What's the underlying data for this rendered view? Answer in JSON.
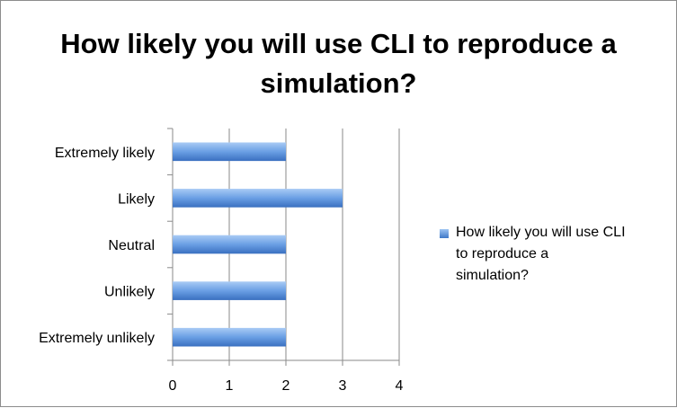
{
  "chart_data": {
    "type": "bar",
    "orientation": "horizontal",
    "title": "How likely you will use CLI to reproduce a simulation?",
    "categories": [
      "Extremely likely",
      "Likely",
      "Neutral",
      "Unlikely",
      "Extremely unlikely"
    ],
    "series": [
      {
        "name": "How likely you will use CLI to reproduce a simulation?",
        "values": [
          2,
          3,
          2,
          2,
          2
        ],
        "color": "#4a83d3"
      }
    ],
    "x_ticks": [
      "0",
      "1",
      "2",
      "3",
      "4"
    ],
    "xlim": [
      0,
      4
    ],
    "grid": true,
    "legend_position": "right"
  }
}
